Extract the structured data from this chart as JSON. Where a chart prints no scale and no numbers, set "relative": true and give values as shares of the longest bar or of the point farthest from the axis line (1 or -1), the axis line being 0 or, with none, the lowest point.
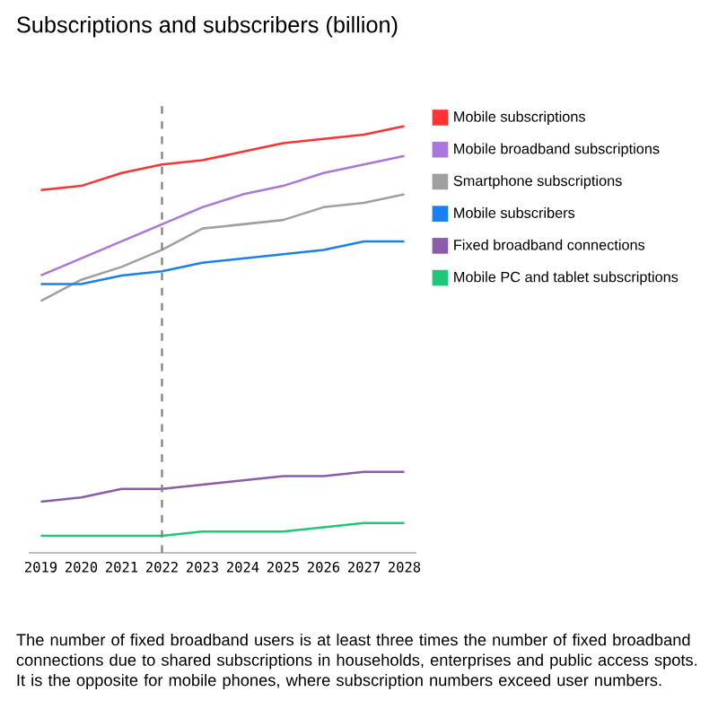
{
  "chart_data": {
    "type": "line",
    "title": "Subscriptions and subscribers (billion)",
    "categories": [
      "2019",
      "2020",
      "2021",
      "2022",
      "2023",
      "2024",
      "2025",
      "2026",
      "2027",
      "2028"
    ],
    "relative": true,
    "series": [
      {
        "name": "Mobile subscriptions",
        "color": "#ff3333",
        "values": [
          0.85,
          0.86,
          0.89,
          0.91,
          0.92,
          0.94,
          0.96,
          0.97,
          0.98,
          1
        ]
      },
      {
        "name": "Mobile broadband subscriptions",
        "color": "#aa77dd",
        "values": [
          0.65,
          0.69,
          0.73,
          0.77,
          0.81,
          0.84,
          0.86,
          0.89,
          0.91,
          0.93
        ]
      },
      {
        "name": "Smartphone subscriptions",
        "color": "#a0a0a0",
        "values": [
          0.59,
          0.64,
          0.67,
          0.71,
          0.76,
          0.77,
          0.78,
          0.81,
          0.82,
          0.84
        ]
      },
      {
        "name": "Mobile subscribers",
        "color": "#1a80f0",
        "values": [
          0.63,
          0.63,
          0.65,
          0.66,
          0.68,
          0.69,
          0.7,
          0.71,
          0.73,
          0.73
        ]
      },
      {
        "name": "Fixed broadband connections",
        "color": "#8a5caa",
        "values": [
          0.12,
          0.13,
          0.15,
          0.15,
          0.16,
          0.17,
          0.18,
          0.18,
          0.19,
          0.19
        ]
      },
      {
        "name": "Mobile PC and tablet subscriptions",
        "color": "#1ec878",
        "values": [
          0.04,
          0.04,
          0.04,
          0.04,
          0.05,
          0.05,
          0.05,
          0.06,
          0.07,
          0.07
        ]
      }
    ],
    "ref_lines": [
      {
        "axis": "x",
        "value": "2022",
        "color": "#808080",
        "line_style": "dashed"
      }
    ],
    "legend": "right",
    "annotations": [
      "The number of fixed broadband users is at least three times the number of fixed broadband connections due to shared subscriptions in households, enterprises and public access spots. It is the opposite for mobile phones, where subscription numbers exceed user numbers."
    ]
  }
}
